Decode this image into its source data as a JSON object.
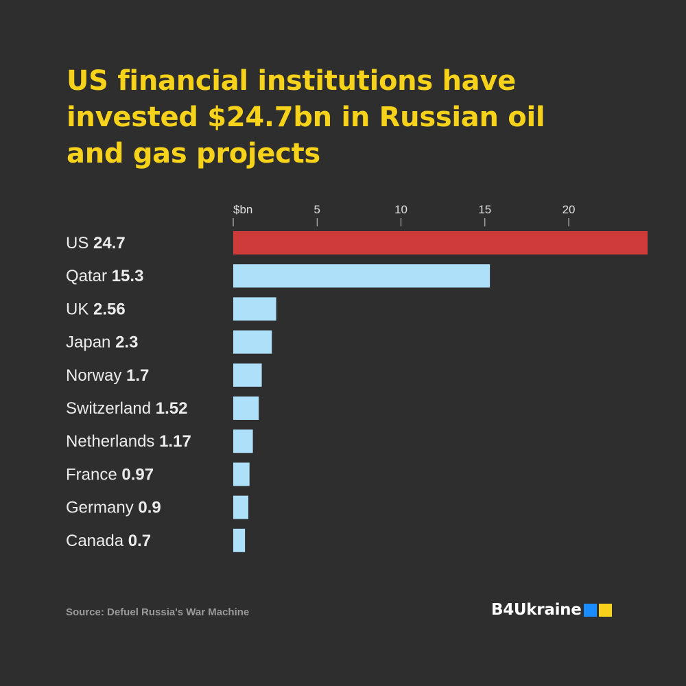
{
  "title": "US financial institutions have invested $24.7bn in Russian oil and gas projects",
  "source": "Source: Defuel Russia's War Machine",
  "brand": {
    "name": "B4Ukraine",
    "colors": [
      "#1a8cff",
      "#f7d21a"
    ]
  },
  "colors": {
    "background": "#2e2e2e",
    "title": "#f7d21a",
    "highlight_bar": "#cf3a3a",
    "bar": "#aee0fa"
  },
  "chart_data": {
    "type": "bar",
    "orientation": "horizontal",
    "title": "US financial institutions have invested $24.7bn in Russian oil and gas projects",
    "unit_label": "$bn",
    "categories": [
      "US",
      "Qatar",
      "UK",
      "Japan",
      "Norway",
      "Switzerland",
      "Netherlands",
      "France",
      "Germany",
      "Canada"
    ],
    "values": [
      24.7,
      15.3,
      2.56,
      2.3,
      1.7,
      1.52,
      1.17,
      0.97,
      0.9,
      0.7
    ],
    "value_labels": [
      "24.7",
      "15.3",
      "2.56",
      "2.3",
      "1.7",
      "1.52",
      "1.17",
      "0.97",
      "0.9",
      "0.7"
    ],
    "highlight_category": "US",
    "ticks": [
      0,
      5,
      10,
      15,
      20
    ],
    "tick_labels": [
      "$bn",
      "5",
      "10",
      "15",
      "20"
    ],
    "xlim": [
      0,
      24.7
    ],
    "grid": false,
    "legend": "none"
  }
}
